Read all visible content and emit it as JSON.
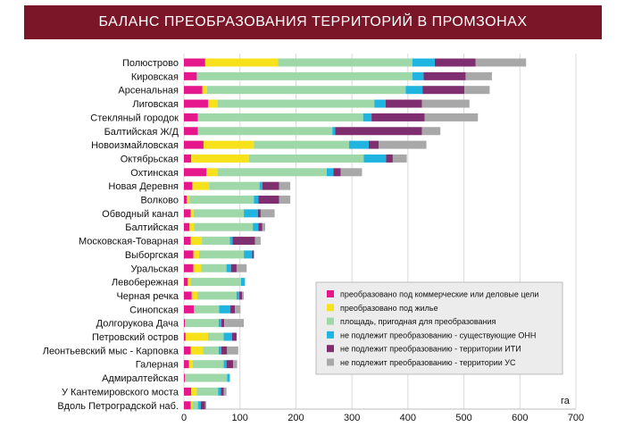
{
  "title": "БАЛАНС ПРЕОБРАЗОВАНИЯ ТЕРРИТОРИЙ В ПРОМЗОНАХ",
  "chart_data": {
    "type": "bar",
    "orientation": "horizontal",
    "stacked": true,
    "unit_label": "га",
    "xlim": [
      0,
      700
    ],
    "xticks": [
      0,
      100,
      200,
      300,
      400,
      500,
      600,
      700
    ],
    "grid": true,
    "legend_position": "bottom-right",
    "colors": [
      "#e6168c",
      "#f7e11a",
      "#9ed7a8",
      "#1fb5e0",
      "#7f2f70",
      "#a8a8a8"
    ],
    "categories": [
      "Полюстрово",
      "Кировская",
      "Арсенальная",
      "Лиговская",
      "Стекляный городок",
      "Балтийская Ж/Д",
      "Новоизмайловская",
      "Октябрьская",
      "Охтинская",
      "Новая Деревня",
      "Волково",
      "Обводный канал",
      "Балтийская",
      "Московская-Товарная",
      "Выборгская",
      "Уральская",
      "Левобережная",
      "Черная речка",
      "Синопская",
      "Долгорукова Дача",
      "Петровский остров",
      "Леонтьевский мыс - Карповка",
      "Галерная",
      "Адмиралтейская",
      "У Кантемировского моста",
      "Вдоль Петроградской наб."
    ],
    "series": [
      {
        "name": "преобразовано под коммерческие или деловые цели",
        "values": [
          38,
          23,
          33,
          43,
          25,
          25,
          35,
          13,
          40,
          15,
          5,
          12,
          10,
          12,
          17,
          17,
          7,
          14,
          18,
          2,
          3,
          12,
          9,
          2,
          13,
          12
        ]
      },
      {
        "name": "преобразовано под жилье",
        "values": [
          130,
          0,
          8,
          17,
          0,
          0,
          90,
          103,
          20,
          30,
          5,
          5,
          8,
          20,
          10,
          14,
          5,
          10,
          0,
          0,
          40,
          22,
          7,
          0,
          10,
          3
        ]
      },
      {
        "name": "площадь, пригодная для преобразования",
        "values": [
          240,
          385,
          355,
          280,
          295,
          240,
          170,
          205,
          195,
          90,
          115,
          90,
          105,
          50,
          80,
          45,
          90,
          70,
          45,
          60,
          28,
          28,
          55,
          75,
          38,
          10
        ]
      },
      {
        "name": "не подлежит преобразованию - существующие ОНН",
        "values": [
          40,
          20,
          30,
          20,
          15,
          5,
          35,
          40,
          12,
          5,
          8,
          25,
          10,
          5,
          15,
          8,
          7,
          5,
          20,
          5,
          15,
          5,
          5,
          5,
          5,
          5
        ]
      },
      {
        "name": "не подлежит преобразованию - территории ИТИ",
        "values": [
          73,
          75,
          75,
          65,
          95,
          155,
          18,
          12,
          13,
          30,
          37,
          5,
          7,
          40,
          3,
          10,
          0,
          5,
          8,
          5,
          8,
          10,
          12,
          0,
          5,
          8
        ]
      },
      {
        "name": "не подлежит преобразованию - территории УС",
        "values": [
          90,
          47,
          45,
          85,
          95,
          33,
          85,
          25,
          38,
          20,
          20,
          25,
          5,
          10,
          0,
          18,
          0,
          3,
          10,
          35,
          0,
          20,
          7,
          0,
          5,
          2
        ]
      }
    ]
  }
}
